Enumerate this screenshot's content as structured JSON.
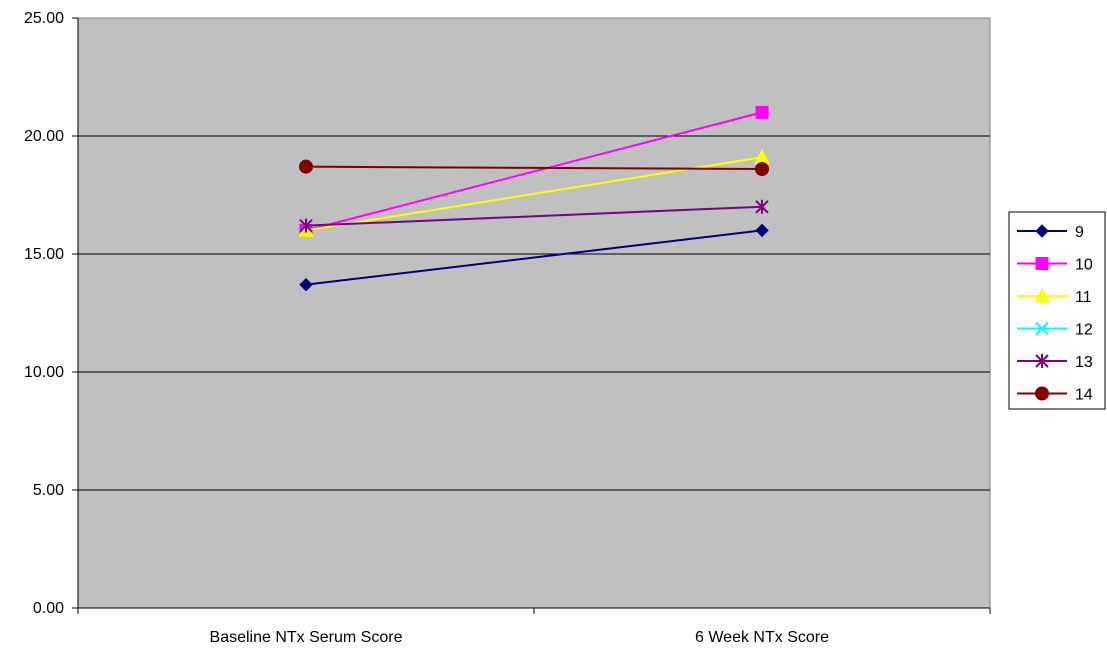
{
  "chart_data": {
    "type": "line",
    "categories": [
      "Baseline NTx Serum Score",
      "6 Week NTx Score"
    ],
    "series": [
      {
        "name": "9",
        "values": [
          13.7,
          16.0
        ],
        "color": "#000080",
        "marker": "diamond"
      },
      {
        "name": "10",
        "values": [
          16.0,
          21.0
        ],
        "color": "#FF00FF",
        "marker": "square"
      },
      {
        "name": "11",
        "values": [
          16.0,
          19.1
        ],
        "color": "#FFFF00",
        "marker": "triangle"
      },
      {
        "name": "12",
        "values": [
          16.2,
          17.0
        ],
        "color": "#00FFFF",
        "marker": "x"
      },
      {
        "name": "13",
        "values": [
          16.2,
          17.0
        ],
        "color": "#800080",
        "marker": "star"
      },
      {
        "name": "14",
        "values": [
          18.7,
          18.6
        ],
        "color": "#800000",
        "marker": "circle"
      }
    ],
    "y_ticks": [
      "0.00",
      "5.00",
      "10.00",
      "15.00",
      "20.00",
      "25.00"
    ],
    "ylim": [
      0,
      25
    ],
    "title": "",
    "xlabel": "",
    "ylabel": "",
    "grid": "horizontal",
    "plot_background": "#C0C0C0",
    "legend_position": "right"
  }
}
